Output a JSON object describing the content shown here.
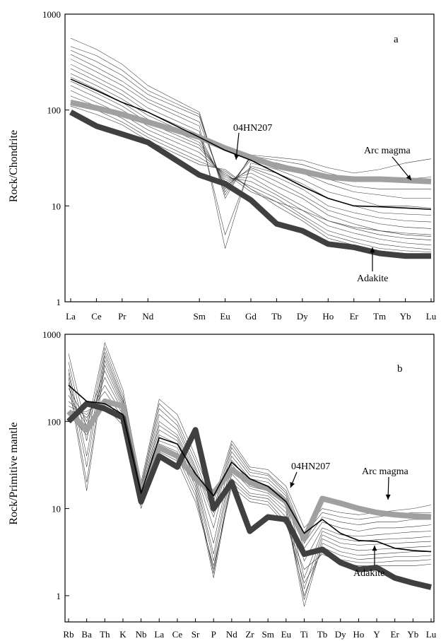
{
  "chart_data": [
    {
      "panel_label": "a",
      "type": "line",
      "ylabel": "Rock/Chondrite",
      "yscale": "log",
      "ylim": [
        1,
        1000
      ],
      "yticks": [
        "1",
        "10",
        "100",
        "1000"
      ],
      "categories": [
        "La",
        "Ce",
        "Pr",
        "Nd",
        "Sm",
        "Eu",
        "Gd",
        "Tb",
        "Dy",
        "Ho",
        "Er",
        "Tm",
        "Yb",
        "Lu"
      ],
      "category_positions": [
        0,
        1,
        2,
        3,
        5,
        6,
        7,
        8,
        9,
        10,
        11,
        12,
        13,
        14
      ],
      "series": [
        {
          "name": "Arc magma",
          "color": "#a0a0a0",
          "values": [
            120,
            105,
            90,
            75,
            52,
            40,
            32,
            26,
            23,
            20,
            19,
            19,
            18.5,
            18
          ]
        },
        {
          "name": "Adakite",
          "color": "#404040",
          "values": [
            95,
            68,
            56,
            46,
            21,
            17,
            11.5,
            6.5,
            5.5,
            4,
            3.7,
            3.2,
            3.0,
            3.0
          ]
        },
        {
          "name": "04HN207",
          "color": "#000000",
          "values": [
            210,
            160,
            120,
            95,
            52,
            38,
            30,
            22,
            16,
            12,
            10,
            9.8,
            9.5,
            9.2
          ]
        }
      ],
      "thin_sample_lines": [
        [
          560,
          430,
          300,
          180,
          95,
          12,
          34,
          32,
          30,
          25,
          22,
          24,
          28,
          31
        ],
        [
          460,
          370,
          260,
          160,
          90,
          13,
          33,
          30,
          27,
          22,
          19,
          18,
          19,
          20
        ],
        [
          420,
          320,
          230,
          145,
          85,
          14,
          32,
          28,
          24,
          19,
          16,
          15,
          15,
          15
        ],
        [
          380,
          280,
          200,
          130,
          75,
          15,
          30,
          26,
          22,
          17,
          14,
          13,
          12,
          12
        ],
        [
          340,
          250,
          180,
          120,
          68,
          3.6,
          28,
          24,
          19,
          14,
          12,
          10,
          10,
          9.5
        ],
        [
          300,
          220,
          160,
          105,
          60,
          5,
          26,
          22,
          17,
          12,
          10,
          8.5,
          8.2,
          8
        ],
        [
          270,
          200,
          145,
          95,
          55,
          16,
          25,
          20,
          15,
          10,
          8.5,
          7.5,
          7,
          6.8
        ],
        [
          240,
          180,
          130,
          88,
          50,
          17,
          24,
          18,
          13,
          9,
          7.5,
          6.5,
          6,
          5.8
        ],
        [
          220,
          165,
          120,
          80,
          46,
          18,
          22,
          16,
          12,
          8,
          6.5,
          5.5,
          5.2,
          5
        ],
        [
          200,
          150,
          110,
          74,
          43,
          19,
          20,
          14,
          10,
          7,
          5.8,
          5,
          4.6,
          4.4
        ],
        [
          180,
          135,
          100,
          68,
          40,
          20,
          18,
          13,
          9,
          6.2,
          5.2,
          4.5,
          4.1,
          3.9
        ],
        [
          160,
          120,
          90,
          62,
          36,
          21,
          16,
          12,
          8,
          5.5,
          4.6,
          4,
          3.7,
          3.5
        ],
        [
          140,
          110,
          82,
          56,
          32,
          22,
          14,
          11,
          7.5,
          5,
          4.2,
          3.6,
          3.4,
          3.3
        ],
        [
          125,
          100,
          75,
          52,
          29,
          23,
          15,
          10,
          7,
          4.6,
          3.9,
          3.4,
          3.2,
          3.1
        ],
        [
          110,
          90,
          70,
          48,
          27,
          24,
          15,
          11,
          9,
          7,
          6,
          5.5,
          5,
          4.8
        ]
      ],
      "annotations": [
        {
          "text": "04HN207",
          "target": "Eu"
        },
        {
          "text": "Arc magma",
          "target": "Yb"
        },
        {
          "text": "Adakite",
          "target": "Tm"
        }
      ]
    },
    {
      "panel_label": "b",
      "type": "line",
      "ylabel": "Rock/Primitive mantle",
      "yscale": "log",
      "ylim": [
        0.5,
        1000
      ],
      "yticks": [
        "1",
        "10",
        "100",
        "1000"
      ],
      "categories": [
        "Rb",
        "Ba",
        "Th",
        "K",
        "Nb",
        "La",
        "Ce",
        "Sr",
        "P",
        "Nd",
        "Zr",
        "Sm",
        "Eu",
        "Ti",
        "Tb",
        "Dy",
        "Ho",
        "Y",
        "Er",
        "Yb",
        "Lu"
      ],
      "series": [
        {
          "name": "Arc magma",
          "color": "#a0a0a0",
          "values": [
            130,
            80,
            170,
            150,
            15,
            50,
            40,
            22,
            15,
            28,
            20,
            17,
            12,
            4.5,
            13,
            11.5,
            10,
            9,
            8.5,
            8.2,
            8
          ]
        },
        {
          "name": "Adakite",
          "color": "#404040",
          "values": [
            100,
            160,
            140,
            110,
            12,
            40,
            30,
            80,
            10,
            20,
            5.5,
            8,
            7.5,
            3,
            3.4,
            2.4,
            2,
            2.1,
            1.6,
            1.4,
            1.25
          ]
        },
        {
          "name": "04HN207",
          "color": "#000000",
          "values": [
            260,
            170,
            160,
            120,
            15,
            65,
            55,
            25,
            14,
            34,
            22,
            18,
            12,
            5.2,
            7.5,
            5.2,
            4.3,
            4.2,
            3.5,
            3.3,
            3.2
          ]
        }
      ],
      "thin_sample_lines": [
        [
          600,
          80,
          800,
          230,
          20,
          180,
          120,
          40,
          12,
          60,
          30,
          28,
          18,
          6,
          10,
          9,
          8.5,
          9,
          9.5,
          10,
          11
        ],
        [
          480,
          60,
          700,
          200,
          18,
          160,
          100,
          35,
          10,
          55,
          28,
          25,
          16,
          5,
          9,
          8,
          7.5,
          8,
          8.5,
          9,
          9
        ],
        [
          400,
          40,
          620,
          180,
          17,
          140,
          90,
          30,
          9,
          50,
          26,
          24,
          15,
          4,
          8,
          7,
          6.5,
          7,
          7,
          7.5,
          7.5
        ],
        [
          360,
          30,
          560,
          170,
          16,
          120,
          80,
          28,
          8,
          45,
          24,
          22,
          14,
          3.5,
          7,
          6,
          5.5,
          6,
          6,
          6.2,
          6.5
        ],
        [
          320,
          20,
          500,
          160,
          15,
          100,
          70,
          26,
          6,
          40,
          22,
          20,
          13,
          2.5,
          6,
          5,
          4.8,
          5,
          5.2,
          5.4,
          5.5
        ],
        [
          280,
          16,
          440,
          150,
          14,
          90,
          65,
          24,
          4,
          36,
          20,
          18,
          12,
          1.6,
          5.5,
          4.5,
          4.2,
          4.4,
          4.5,
          4.6,
          4.8
        ],
        [
          240,
          100,
          380,
          140,
          13,
          80,
          60,
          22,
          3,
          32,
          18,
          16,
          11,
          1.2,
          5,
          4,
          3.8,
          3.9,
          4,
          4.1,
          4.2
        ],
        [
          200,
          90,
          320,
          130,
          12,
          70,
          55,
          20,
          2.5,
          28,
          17,
          15,
          10,
          0.9,
          4.5,
          3.6,
          3.3,
          3.4,
          3.5,
          3.6,
          3.7
        ],
        [
          170,
          110,
          260,
          120,
          11,
          60,
          50,
          18,
          1.8,
          25,
          15,
          14,
          9,
          0.75,
          4,
          3.2,
          2.9,
          3,
          3.1,
          3.2,
          3.2
        ],
        [
          150,
          120,
          220,
          110,
          10,
          55,
          45,
          16,
          1.6,
          22,
          14,
          13,
          8,
          1.0,
          3.6,
          2.9,
          2.6,
          2.7,
          2.8,
          2.8,
          2.9
        ],
        [
          130,
          130,
          180,
          100,
          13,
          50,
          40,
          14,
          2,
          20,
          13,
          12,
          7,
          1.4,
          3.2,
          2.6,
          2.4,
          2.4,
          2.5,
          2.5,
          2.6
        ],
        [
          120,
          70,
          150,
          90,
          14,
          45,
          35,
          12,
          2.2,
          18,
          12,
          11,
          6.5,
          2,
          3,
          2.4,
          2.2,
          2.2,
          2.2,
          2.2,
          2.3
        ]
      ],
      "annotations": [
        {
          "text": "04HN207",
          "target": "Ti"
        },
        {
          "text": "Arc magma",
          "target": "Y"
        },
        {
          "text": "Adakite",
          "target": "Y"
        }
      ]
    }
  ]
}
